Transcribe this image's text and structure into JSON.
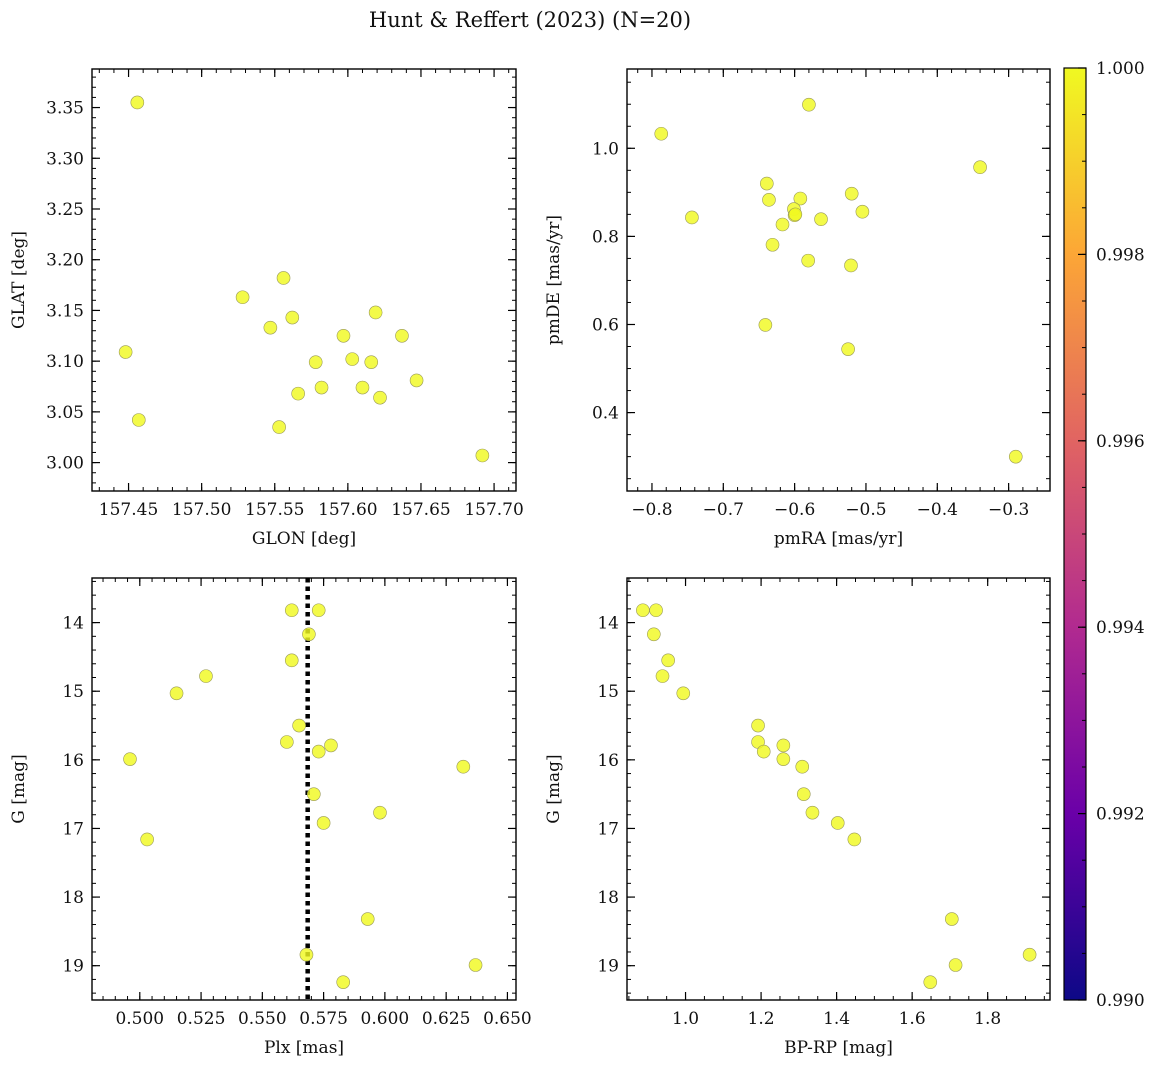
{
  "figure_title": "Hunt & Reffert (2023) (N=20)",
  "marker_color": "#f0f921",
  "colorbar": {
    "vmin": 0.99,
    "vmax": 1.0,
    "ticks": [
      "0.990",
      "0.992",
      "0.994",
      "0.996",
      "0.998",
      "1.000"
    ],
    "tick_values": [
      0.99,
      0.992,
      0.994,
      0.996,
      0.998,
      1.0
    ],
    "colormap": [
      "#0d0887",
      "#6a00a8",
      "#b12a90",
      "#e16462",
      "#fca636",
      "#f0f921"
    ]
  },
  "chart_data": [
    {
      "id": "glon-glat",
      "type": "scatter",
      "xlabel": "GLON [deg]",
      "ylabel": "GLAT [deg]",
      "xlim": [
        157.425,
        157.715
      ],
      "ylim": [
        2.972,
        3.388
      ],
      "xticks": [
        157.45,
        157.5,
        157.55,
        157.6,
        157.65,
        157.7
      ],
      "xtick_labels": [
        "157.45",
        "157.50",
        "157.55",
        "157.60",
        "157.65",
        "157.70"
      ],
      "yticks": [
        3.0,
        3.05,
        3.1,
        3.15,
        3.2,
        3.25,
        3.3,
        3.35
      ],
      "ytick_labels": [
        "3.00",
        "3.05",
        "3.10",
        "3.15",
        "3.20",
        "3.25",
        "3.30",
        "3.35"
      ],
      "x_minor_step": 0.01,
      "y_minor_step": 0.01,
      "x": [
        157.456,
        157.448,
        157.457,
        157.528,
        157.556,
        157.547,
        157.562,
        157.553,
        157.566,
        157.578,
        157.582,
        157.597,
        157.603,
        157.61,
        157.616,
        157.619,
        157.622,
        157.637,
        157.647,
        157.692
      ],
      "y": [
        3.355,
        3.109,
        3.042,
        3.163,
        3.182,
        3.133,
        3.143,
        3.035,
        3.068,
        3.099,
        3.074,
        3.125,
        3.102,
        3.074,
        3.099,
        3.148,
        3.064,
        3.125,
        3.081,
        3.007
      ]
    },
    {
      "id": "pmra-pmde",
      "type": "scatter",
      "xlabel": "pmRA [mas/yr]",
      "ylabel": "pmDE [mas/yr]",
      "xlim": [
        -0.835,
        -0.242
      ],
      "ylim": [
        0.222,
        1.18
      ],
      "xticks": [
        -0.8,
        -0.7,
        -0.6,
        -0.5,
        -0.4,
        -0.3
      ],
      "xtick_labels": [
        "−0.8",
        "−0.7",
        "−0.6",
        "−0.5",
        "−0.4",
        "−0.3"
      ],
      "yticks": [
        0.4,
        0.6,
        0.8,
        1.0
      ],
      "ytick_labels": [
        "0.4",
        "0.6",
        "0.8",
        "1.0"
      ],
      "x_minor_step": 0.02,
      "y_minor_step": 0.05,
      "x": [
        -0.787,
        -0.58,
        -0.744,
        -0.639,
        -0.636,
        -0.592,
        -0.601,
        -0.52,
        -0.505,
        -0.6,
        -0.563,
        -0.617,
        -0.631,
        -0.581,
        -0.521,
        -0.34,
        -0.641,
        -0.525,
        -0.29,
        -0.599
      ],
      "y": [
        1.033,
        1.099,
        0.843,
        0.92,
        0.883,
        0.886,
        0.862,
        0.897,
        0.856,
        0.848,
        0.839,
        0.827,
        0.781,
        0.745,
        0.734,
        0.957,
        0.599,
        0.544,
        0.3,
        0.85
      ]
    },
    {
      "id": "plx-g",
      "type": "scatter",
      "xlabel": "Plx [mas]",
      "ylabel": "G [mag]",
      "xlim": [
        0.4805,
        0.6535
      ],
      "ylim": [
        19.5,
        13.35
      ],
      "xticks": [
        0.5,
        0.525,
        0.55,
        0.575,
        0.6,
        0.625,
        0.65
      ],
      "xtick_labels": [
        "0.500",
        "0.525",
        "0.550",
        "0.575",
        "0.600",
        "0.625",
        "0.650"
      ],
      "yticks": [
        14,
        15,
        16,
        17,
        18,
        19
      ],
      "ytick_labels": [
        "14",
        "15",
        "16",
        "17",
        "18",
        "19"
      ],
      "x_minor_step": 0.005,
      "y_minor_step": 0.2,
      "vline_x": 0.5685,
      "x": [
        0.562,
        0.573,
        0.569,
        0.562,
        0.527,
        0.515,
        0.565,
        0.56,
        0.573,
        0.578,
        0.496,
        0.632,
        0.571,
        0.598,
        0.575,
        0.503,
        0.593,
        0.568,
        0.637,
        0.583
      ],
      "y": [
        13.82,
        13.82,
        14.17,
        14.55,
        14.78,
        15.03,
        15.5,
        15.74,
        15.88,
        15.79,
        15.99,
        16.1,
        16.5,
        16.77,
        16.92,
        17.16,
        18.32,
        18.84,
        18.99,
        19.24
      ]
    },
    {
      "id": "bprp-g",
      "type": "scatter",
      "xlabel": "BP-RP [mag]",
      "ylabel": "G [mag]",
      "xlim": [
        0.845,
        1.965
      ],
      "ylim": [
        19.5,
        13.35
      ],
      "xticks": [
        1.0,
        1.2,
        1.4,
        1.6,
        1.8
      ],
      "xtick_labels": [
        "1.0",
        "1.2",
        "1.4",
        "1.6",
        "1.8"
      ],
      "yticks": [
        14,
        15,
        16,
        17,
        18,
        19
      ],
      "ytick_labels": [
        "14",
        "15",
        "16",
        "17",
        "18",
        "19"
      ],
      "x_minor_step": 0.05,
      "y_minor_step": 0.2,
      "x": [
        0.887,
        0.922,
        0.916,
        0.954,
        0.939,
        0.994,
        1.192,
        1.192,
        1.207,
        1.259,
        1.259,
        1.309,
        1.313,
        1.336,
        1.403,
        1.447,
        1.705,
        1.911,
        1.715,
        1.648
      ],
      "y": [
        13.82,
        13.82,
        14.17,
        14.55,
        14.78,
        15.03,
        15.5,
        15.74,
        15.88,
        15.79,
        15.99,
        16.1,
        16.5,
        16.77,
        16.92,
        17.16,
        18.32,
        18.84,
        18.99,
        19.24
      ]
    }
  ]
}
